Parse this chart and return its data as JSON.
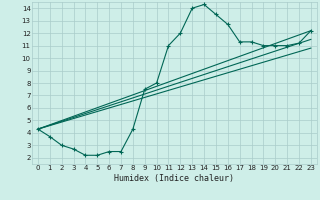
{
  "xlabel": "Humidex (Indice chaleur)",
  "bg_color": "#ceeee8",
  "grid_color": "#aaccca",
  "line_color": "#006655",
  "xlim": [
    -0.5,
    23.5
  ],
  "ylim": [
    1.5,
    14.5
  ],
  "xticks": [
    0,
    1,
    2,
    3,
    4,
    5,
    6,
    7,
    8,
    9,
    10,
    11,
    12,
    13,
    14,
    15,
    16,
    17,
    18,
    19,
    20,
    21,
    22,
    23
  ],
  "yticks": [
    2,
    3,
    4,
    5,
    6,
    7,
    8,
    9,
    10,
    11,
    12,
    13,
    14
  ],
  "series1_x": [
    0,
    1,
    2,
    3,
    4,
    5,
    6,
    7,
    8,
    9,
    10,
    11,
    12,
    13,
    14,
    15,
    16,
    17,
    18,
    19,
    20,
    21,
    22,
    23
  ],
  "series1_y": [
    4.3,
    3.7,
    3.0,
    2.7,
    2.2,
    2.2,
    2.5,
    2.5,
    4.3,
    7.5,
    8.0,
    11.0,
    12.0,
    14.0,
    14.3,
    13.5,
    12.7,
    11.3,
    11.3,
    11.0,
    11.0,
    11.0,
    11.2,
    12.2
  ],
  "series2_x": [
    0,
    23
  ],
  "series2_y": [
    4.3,
    12.2
  ],
  "series3_x": [
    0,
    23
  ],
  "series3_y": [
    4.3,
    11.5
  ],
  "series4_x": [
    0,
    23
  ],
  "series4_y": [
    4.3,
    10.8
  ]
}
